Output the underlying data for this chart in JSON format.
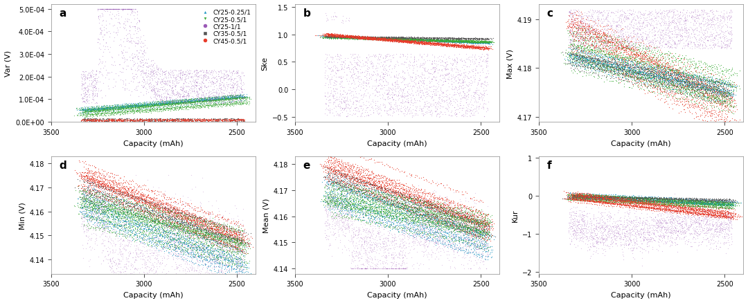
{
  "legend_labels": [
    "CY25-0.25/1",
    "CY25-0.5/1",
    "CY25-1/1",
    "CY35-0.5/1",
    "CY45-0.5/1"
  ],
  "colors": [
    "#2196c4",
    "#3aaa35",
    "#9b59b6",
    "#555555",
    "#e83b2a"
  ],
  "markers": [
    "^",
    "v",
    "o",
    "s",
    "o"
  ],
  "panel_labels": [
    "a",
    "b",
    "c",
    "d",
    "e",
    "f"
  ],
  "ylabels": [
    "Var (V)",
    "Ske",
    "Max (V)",
    "Min (V)",
    "Mean (V)",
    "Kur"
  ],
  "xlabel": "Capacity (mAh)",
  "figsize": [
    10.8,
    4.39
  ],
  "dpi": 100,
  "background": "#ffffff"
}
